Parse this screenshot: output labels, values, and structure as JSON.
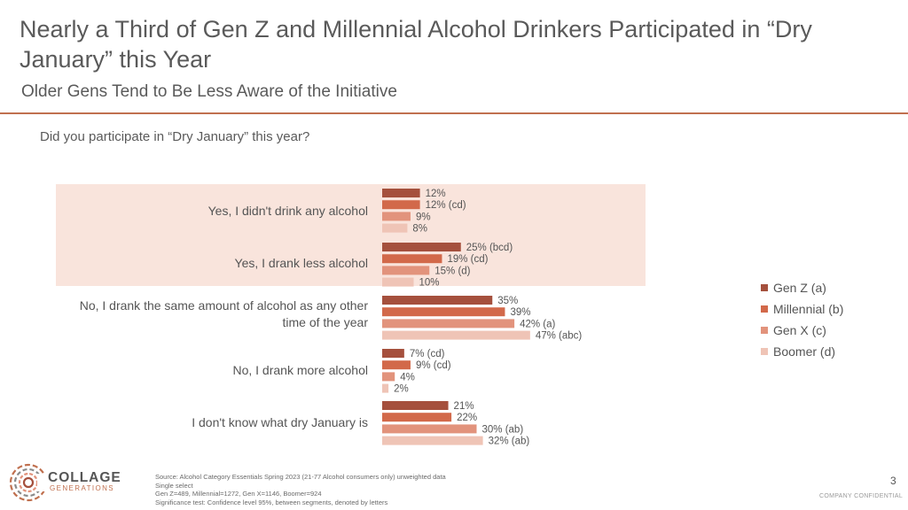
{
  "slide": {
    "title": "Nearly a Third of Gen Z and Millennial Alcohol Drinkers Participated in “Dry January” this Year",
    "subtitle": "Older Gens Tend to Be Less Aware of the Initiative",
    "question": "Did you participate in “Dry January” this year?",
    "page_number": "3",
    "confidential": "COMPANY CONFIDENTIAL",
    "logo": {
      "line1": "COLLAGE",
      "line2": "GENERATIONS"
    },
    "footer": [
      "Source: Alcohol Category Essentials Spring 2023 (21-77 Alcohol consumers only) unweighted data",
      "Single select",
      "Gen Z=489, Millennial=1272, Gen X=1146, Boomer=924",
      "Significance test: Confidence level 95%, between segments, denoted by letters"
    ],
    "colors": {
      "accent": "#c0704f",
      "highlight": "#f9e4dc"
    }
  },
  "chart_data": {
    "type": "bar",
    "orientation": "horizontal",
    "categories": [
      "Yes, I didn't drink any alcohol",
      "Yes, I drank less alcohol",
      "No, I drank the same amount of alcohol as any other time of the year",
      "No, I drank more alcohol",
      "I don't know what dry January is"
    ],
    "series": [
      {
        "name": "Gen Z (a)",
        "color": "#a5503d",
        "values": [
          12,
          25,
          35,
          7,
          21
        ],
        "labels": [
          "12%",
          "25% (bcd)",
          "35%",
          "7% (cd)",
          "21%"
        ]
      },
      {
        "name": "Millennial (b)",
        "color": "#d2694a",
        "values": [
          12,
          19,
          39,
          9,
          22
        ],
        "labels": [
          "12% (cd)",
          "19% (cd)",
          "39%",
          "9% (cd)",
          "22%"
        ]
      },
      {
        "name": "Gen X (c)",
        "color": "#e2937c",
        "values": [
          9,
          15,
          42,
          4,
          30
        ],
        "labels": [
          "9%",
          "15% (d)",
          "42% (a)",
          "4%",
          "30% (ab)"
        ]
      },
      {
        "name": "Boomer (d)",
        "color": "#efc4b6",
        "values": [
          8,
          10,
          47,
          2,
          32
        ],
        "labels": [
          "8%",
          "10%",
          "47% (abc)",
          "2%",
          "32% (ab)"
        ]
      }
    ],
    "xlim": [
      0,
      100
    ],
    "legend_position": "right",
    "grid": false,
    "highlighted_categories": [
      0,
      1
    ]
  }
}
